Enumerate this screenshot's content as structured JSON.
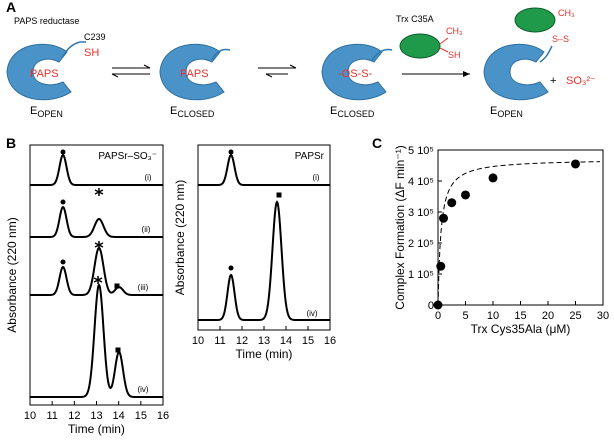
{
  "panels": {
    "a": "A",
    "b": "B",
    "c": "C"
  },
  "scheme": {
    "enzyme": "PAPS reductase",
    "cysteine": "C239",
    "thiol": "SH",
    "substrate": "PAPS",
    "state": "E",
    "open": "OPEN",
    "closed": "CLOSED",
    "intermediate": "-OS-S-",
    "trx": "Trx C35A",
    "methyl": "CH₃",
    "disulfide": "S–S",
    "plus": "+",
    "product": "SO₃²⁻"
  },
  "chart_data": [
    {
      "type": "chromatogram",
      "title": "PAPSr–SO₃⁻",
      "xlabel": "Time (min)",
      "ylabel": "Absorbance (220 nm)",
      "xlim": [
        10,
        16
      ],
      "xticks": [
        10,
        11,
        12,
        13,
        14,
        15,
        16
      ],
      "trace_labels": [
        "(i)",
        "(ii)",
        "(iii)",
        "(iv)"
      ]
    },
    {
      "type": "chromatogram",
      "title": "PAPSr",
      "xlabel": "Time (min)",
      "ylabel": "Absorbance (220 nm)",
      "xlim": [
        10,
        16
      ],
      "xticks": [
        10,
        11,
        12,
        13,
        14,
        15,
        16
      ],
      "trace_labels": [
        "(i)",
        "(iv)"
      ]
    },
    {
      "type": "scatter",
      "xlabel": "Trx Cys35Ala (μM)",
      "ylabel": "Complex Formation (ΔF min⁻¹)",
      "x": [
        0,
        0.5,
        1,
        2.5,
        5,
        10,
        25
      ],
      "values": [
        0,
        125000,
        280000,
        330000,
        355000,
        410000,
        455000
      ],
      "color": "#000000",
      "xlim": [
        0,
        30
      ],
      "xticks": [
        0,
        5,
        10,
        15,
        20,
        25,
        30
      ],
      "ylim": [
        0,
        500000
      ],
      "yticks": [
        0,
        {
          "value": 100000,
          "label": "1 10⁵"
        },
        {
          "value": 200000,
          "label": "2 10⁵"
        },
        {
          "value": 300000,
          "label": "3 10⁵"
        },
        {
          "value": 400000,
          "label": "4 10⁵"
        },
        {
          "value": 500000,
          "label": "5 10⁵"
        }
      ]
    }
  ]
}
